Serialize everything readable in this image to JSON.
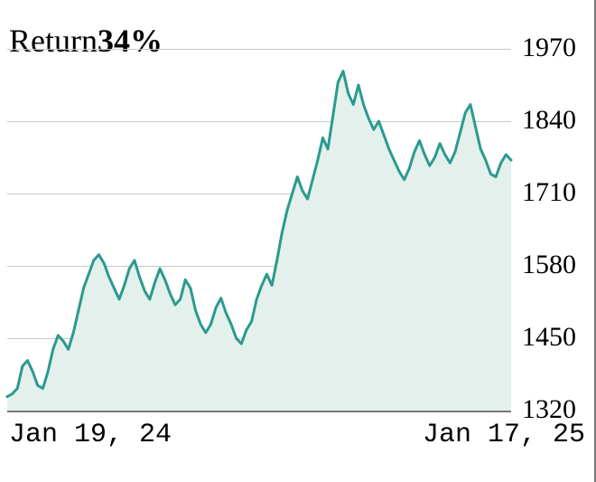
{
  "chart": {
    "type": "area",
    "title_label": "Return",
    "title_value": "34%",
    "title_fontsize": 36,
    "ylim": [
      1320,
      1970
    ],
    "ytick_step": 130,
    "yticks": [
      1320,
      1450,
      1580,
      1710,
      1840,
      1970
    ],
    "x_labels": [
      "Jan 19, 24",
      "Jan 17, 25"
    ],
    "line_color": "#2b9a8f",
    "line_width": 3,
    "fill_color": "#e3f0ec",
    "grid_color": "#c9c9c9",
    "background_color": "#ffffff",
    "axis_line_color": "#777777",
    "label_fontsize": 30,
    "label_color": "#000000",
    "series": [
      1345,
      1350,
      1360,
      1400,
      1410,
      1390,
      1365,
      1360,
      1390,
      1430,
      1455,
      1445,
      1430,
      1460,
      1500,
      1540,
      1565,
      1590,
      1600,
      1585,
      1560,
      1540,
      1520,
      1545,
      1575,
      1590,
      1560,
      1535,
      1520,
      1550,
      1575,
      1555,
      1530,
      1510,
      1520,
      1555,
      1540,
      1500,
      1475,
      1460,
      1475,
      1505,
      1522,
      1495,
      1475,
      1450,
      1440,
      1465,
      1480,
      1520,
      1545,
      1565,
      1545,
      1590,
      1640,
      1680,
      1710,
      1740,
      1715,
      1700,
      1735,
      1770,
      1810,
      1790,
      1850,
      1910,
      1930,
      1890,
      1870,
      1905,
      1870,
      1845,
      1825,
      1840,
      1815,
      1790,
      1770,
      1750,
      1735,
      1755,
      1785,
      1805,
      1780,
      1760,
      1775,
      1800,
      1780,
      1765,
      1785,
      1820,
      1855,
      1870,
      1830,
      1790,
      1770,
      1745,
      1740,
      1765,
      1780,
      1770
    ]
  }
}
